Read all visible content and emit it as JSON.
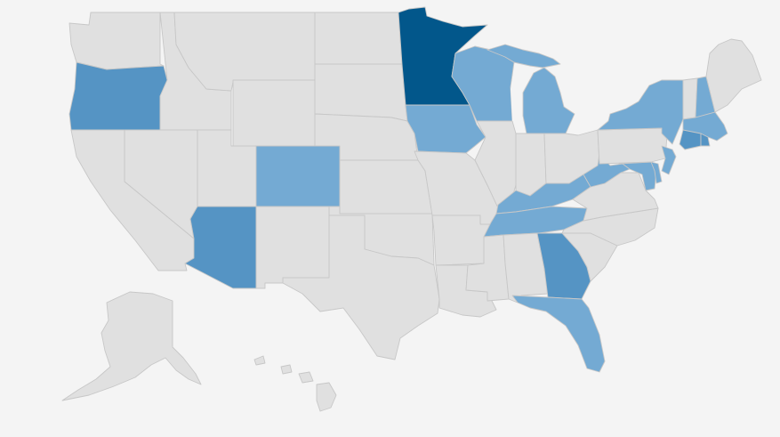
{
  "map": {
    "type": "choropleth",
    "region": "United States",
    "colors": {
      "background": "#f4f4f4",
      "no_data": "#e0e0e0",
      "border": "#c7c7c7",
      "light": "#74aad3",
      "medium": "#5594c4",
      "dark": "#02578b"
    },
    "levels": {
      "minnesota": "dark",
      "oregon": "medium",
      "arizona": "medium",
      "georgia": "medium",
      "connecticut": "medium",
      "rhode-island": "medium",
      "colorado": "light",
      "iowa": "light",
      "wisconsin": "light",
      "michigan": "light",
      "new-york": "light",
      "new-hampshire": "light",
      "massachusetts": "light",
      "new-jersey": "light",
      "maryland": "light",
      "delaware": "light",
      "west-virginia": "light",
      "kentucky": "light",
      "tennessee": "light",
      "florida": "light"
    }
  }
}
